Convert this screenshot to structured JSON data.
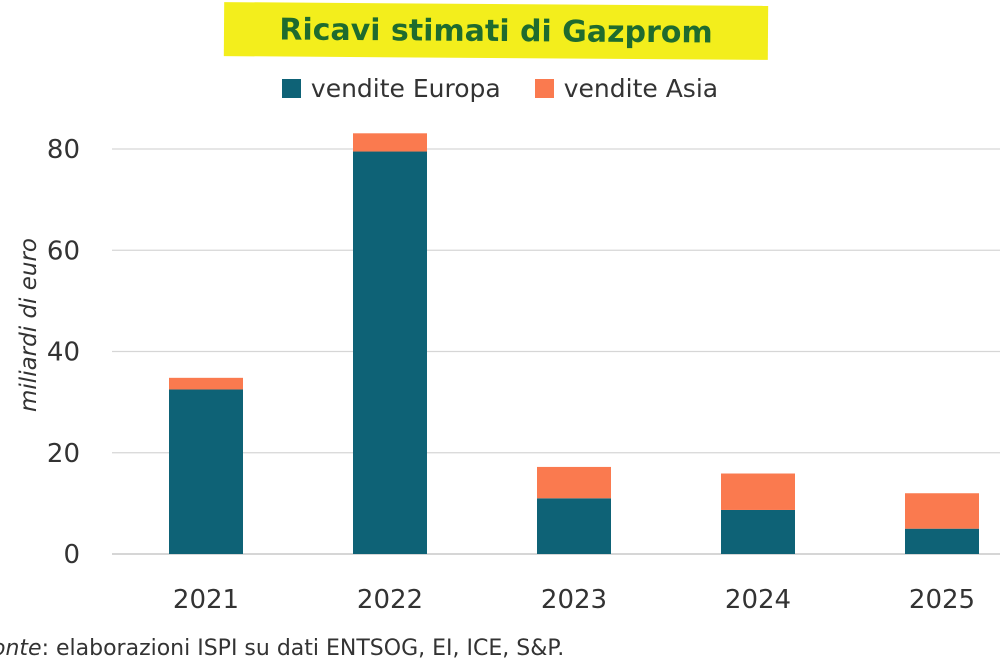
{
  "chart_data": {
    "type": "bar",
    "stacked": true,
    "title": "Ricavi stimati di Gazprom",
    "ylabel": "miliardi di euro",
    "ylim": [
      0,
      80
    ],
    "yticks": [
      0,
      20,
      40,
      60,
      80
    ],
    "categories": [
      "2021",
      "2022",
      "2023",
      "2024",
      "2025"
    ],
    "series": [
      {
        "name": "vendite Europa",
        "color": "#0e6276",
        "values": [
          32.5,
          79.5,
          11,
          8.7,
          5
        ]
      },
      {
        "name": "vendite Asia",
        "color": "#fa7a4f",
        "values": [
          2.3,
          3.6,
          6.2,
          7.2,
          7
        ]
      }
    ],
    "legend": "top-center",
    "grid": true
  },
  "footer": {
    "source_label": "onte",
    "source_text": ": elaborazioni ISPI su dati ENTSOG, EI, ICE, S&P."
  }
}
